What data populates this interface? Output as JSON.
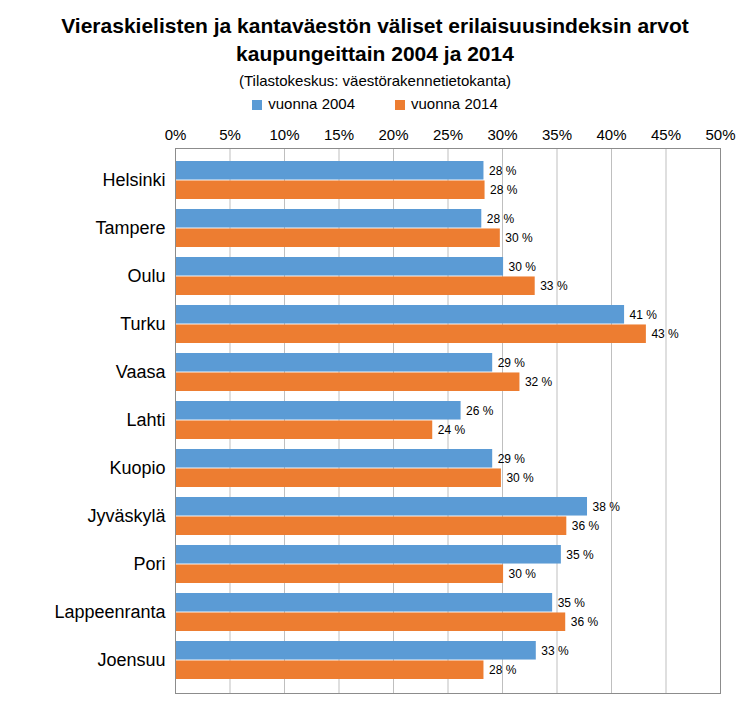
{
  "chart_data": {
    "type": "bar",
    "orientation": "horizontal",
    "title": "Vieraskielisten ja kantaväestön väliset erilaisuusindeksin arvot kaupungeittain 2004 ja 2014",
    "subtitle": "(Tilastokeskus: väestörakennetietokanta)",
    "categories": [
      "Helsinki",
      "Tampere",
      "Oulu",
      "Turku",
      "Vaasa",
      "Lahti",
      "Kuopio",
      "Jyväskylä",
      "Pori",
      "Lappeenranta",
      "Joensuu"
    ],
    "series": [
      {
        "name": "vuonna 2004",
        "color": "#5b9bd5",
        "values": [
          28.3,
          28.1,
          30.1,
          41.2,
          29.1,
          26.2,
          29.1,
          37.8,
          35.4,
          34.6,
          33.1
        ],
        "value_labels": [
          "28 %",
          "28 %",
          "30 %",
          "41 %",
          "29 %",
          "26 %",
          "29 %",
          "38 %",
          "35 %",
          "35 %",
          "33 %"
        ]
      },
      {
        "name": "vuonna 2014",
        "color": "#ed7d31",
        "values": [
          28.4,
          29.8,
          33.0,
          43.2,
          31.6,
          23.6,
          29.9,
          35.9,
          30.1,
          35.8,
          28.3
        ],
        "value_labels": [
          "28 %",
          "30 %",
          "33 %",
          "43 %",
          "32 %",
          "24 %",
          "30 %",
          "36 %",
          "30 %",
          "36 %",
          "28 %"
        ]
      }
    ],
    "xlim": [
      0,
      50
    ],
    "xticks": [
      {
        "value": 0,
        "label": "0%"
      },
      {
        "value": 5,
        "label": "5%"
      },
      {
        "value": 10,
        "label": "10%"
      },
      {
        "value": 15,
        "label": "15%"
      },
      {
        "value": 20,
        "label": "20%"
      },
      {
        "value": 25,
        "label": "25%"
      },
      {
        "value": 30,
        "label": "30%"
      },
      {
        "value": 35,
        "label": "35%"
      },
      {
        "value": 40,
        "label": "40%"
      },
      {
        "value": 45,
        "label": "45%"
      },
      {
        "value": 50,
        "label": "50%"
      }
    ],
    "grid": true,
    "legend": "top",
    "data_labels": true
  }
}
